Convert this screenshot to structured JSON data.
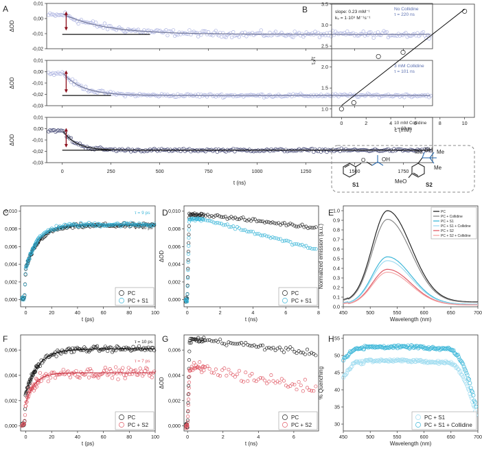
{
  "colors": {
    "lavender": "#a9b0e0",
    "lavender_dark": "#5a6fb0",
    "navy": "#3b3f6e",
    "black": "#222222",
    "gray": "#888888",
    "cyan": "#3bb6d8",
    "lightcyan": "#9fdcf0",
    "red": "#e05a66",
    "pink": "#f4a5a5",
    "darkred": "#8b0d1a",
    "fitgray": "#7a7f9e"
  },
  "chart_data": [
    {
      "id": "A1",
      "type": "scatter",
      "letter": "A",
      "xlim": [
        -80,
        1900
      ],
      "ylim": [
        -0.02,
        0.01
      ],
      "xticks": [
        0,
        250,
        500,
        750,
        1000,
        1250,
        1500,
        1750
      ],
      "xticklabels": [
        "",
        "",
        "",
        "",
        "",
        "",
        "",
        ""
      ],
      "yticks": [
        -0.02,
        -0.01,
        0,
        0.01
      ],
      "yticklabels": [
        "-0,02",
        "-0,01",
        "0,00",
        "0,01"
      ],
      "ylabel": "ΔOD",
      "xlabel": "",
      "annotation": [
        "No Collidine",
        "τ = 220 ns"
      ],
      "series": [
        {
          "name": "No Collidine",
          "tau_ns": 220,
          "plateau": -0.0105,
          "start": 0.0032,
          "noise": 0.0017,
          "color": "lavender",
          "fit_color": "fitgray"
        }
      ]
    },
    {
      "id": "A2",
      "type": "scatter",
      "xlim": [
        -80,
        1900
      ],
      "ylim": [
        -0.03,
        0.01
      ],
      "xticks": [
        0,
        250,
        500,
        750,
        1000,
        1250,
        1500,
        1750
      ],
      "xticklabels": [
        "",
        "",
        "",
        "",
        "",
        "",
        "",
        ""
      ],
      "yticks": [
        -0.03,
        -0.02,
        -0.01,
        0,
        0.01
      ],
      "yticklabels": [
        "-0,03",
        "-0,02",
        "-0,01",
        "0,00",
        "0,01"
      ],
      "ylabel": "ΔOD",
      "xlabel": "",
      "annotation": [
        "3 mM Collidine",
        "τ = 101 ns"
      ],
      "series": [
        {
          "name": "3 mM Collidine",
          "tau_ns": 101,
          "plateau": -0.021,
          "start": -0.0005,
          "noise": 0.0013,
          "color": "lavender",
          "fit_color": "fitgray"
        }
      ]
    },
    {
      "id": "A3",
      "type": "scatter",
      "xlim": [
        -80,
        1900
      ],
      "ylim": [
        -0.03,
        0.01
      ],
      "xticks": [
        0,
        250,
        500,
        750,
        1000,
        1250,
        1500,
        1750
      ],
      "xticklabels": [
        "0",
        "250",
        "500",
        "750",
        "1000",
        "1250",
        "1500",
        "1750"
      ],
      "yticks": [
        -0.03,
        -0.02,
        -0.01,
        0,
        0.01
      ],
      "yticklabels": [
        "-0,03",
        "-0,02",
        "-0,01",
        "0,00",
        "0,01"
      ],
      "ylabel": "ΔOD",
      "xlabel": "t (ns)",
      "annotation": [
        "10 mM Collidine",
        "τ = 68 ns"
      ],
      "series": [
        {
          "name": "10 mM Collidine",
          "tau_ns": 68,
          "plateau": -0.019,
          "start": -0.001,
          "noise": 0.0011,
          "color": "navy",
          "fit_color": "black"
        }
      ]
    },
    {
      "id": "B",
      "type": "scatter",
      "letter": "B",
      "xlim": [
        -0.8,
        10.8
      ],
      "ylim": [
        0.8,
        3.5
      ],
      "xticks": [
        0,
        2,
        4,
        6,
        8,
        10
      ],
      "xticklabels": [
        "0",
        "2",
        "4",
        "6",
        "8",
        "10"
      ],
      "yticks": [
        1.0,
        1.5,
        2.0,
        2.5,
        3.0,
        3.5
      ],
      "yticklabels": [
        "1.0",
        "1.5",
        "2.0",
        "2.5",
        "3.0",
        "3.5"
      ],
      "xlabel": "c (mM)",
      "ylabel": "τ₀/τ",
      "annotation": [
        "slope: 0.23 mM⁻¹",
        "k₉ = 1·10⁹ M⁻¹s⁻¹"
      ],
      "points": [
        {
          "x": 0,
          "y": 1.0
        },
        {
          "x": 1,
          "y": 1.15
        },
        {
          "x": 3,
          "y": 2.25
        },
        {
          "x": 5,
          "y": 2.35
        },
        {
          "x": 10,
          "y": 3.33
        }
      ],
      "fit": {
        "slope": 0.23,
        "intercept": 1.08,
        "x_range": [
          0,
          10
        ]
      }
    },
    {
      "id": "C",
      "type": "scatter",
      "letter": "C",
      "xlim": [
        -4,
        100
      ],
      "ylim": [
        -0.0008,
        0.0106
      ],
      "xticks": [
        0,
        20,
        40,
        60,
        80,
        100
      ],
      "xticklabels": [
        "0",
        "20",
        "40",
        "60",
        "80",
        "100"
      ],
      "yticks": [
        0,
        0.002,
        0.004,
        0.006,
        0.008,
        0.01
      ],
      "yticklabels": [
        "0,000",
        "0,002",
        "0,004",
        "0,006",
        "0,008",
        "0,010"
      ],
      "xlabel": "t (ps)",
      "ylabel": "ΔOD",
      "tau_labels": [
        {
          "text": "τ = 9 ps",
          "color": "cyan"
        },
        {
          "text": "τ = 10 ps",
          "color": "black"
        }
      ],
      "legend": [
        "PC",
        "PC + S1"
      ],
      "series": [
        {
          "name": "PC",
          "tau_ps": 10,
          "amp": 0.0084,
          "start": 0.0035,
          "noise": 0.00018,
          "color": "black"
        },
        {
          "name": "PC + S1",
          "tau_ps": 9,
          "amp": 0.0085,
          "start": 0.0035,
          "noise": 0.0002,
          "color": "cyan"
        }
      ]
    },
    {
      "id": "D",
      "type": "scatter",
      "letter": "D",
      "xlim": [
        -0.2,
        8
      ],
      "ylim": [
        -0.0008,
        0.0106
      ],
      "xticks": [
        0,
        2,
        4,
        6,
        8
      ],
      "xticklabels": [
        "0",
        "2",
        "4",
        "6",
        "8"
      ],
      "yticks": [
        0,
        0.002,
        0.004,
        0.006,
        0.008,
        0.01
      ],
      "yticklabels": [
        "0,000",
        "0,002",
        "0,004",
        "0,006",
        "0,008",
        "0,010"
      ],
      "xlabel": "t (ns)",
      "ylabel": "ΔOD",
      "legend": [
        "PC",
        "PC + S1"
      ],
      "series": [
        {
          "name": "PC",
          "peak": 0.0096,
          "end": 0.0081,
          "noise": 0.00015,
          "color": "black"
        },
        {
          "name": "PC + S1",
          "peak": 0.0091,
          "end": 0.0056,
          "noise": 0.00014,
          "color": "cyan"
        }
      ]
    },
    {
      "id": "E",
      "type": "line",
      "letter": "E",
      "xlim": [
        450,
        700
      ],
      "ylim": [
        0,
        1.05
      ],
      "xticks": [
        450,
        500,
        550,
        600,
        650,
        700
      ],
      "xticklabels": [
        "450",
        "500",
        "550",
        "600",
        "650",
        "700"
      ],
      "yticks": [
        0,
        0.1,
        0.2,
        0.3,
        0.4,
        0.5,
        0.6,
        0.7,
        0.8,
        0.9,
        1.0
      ],
      "yticklabels": [
        "0.0",
        "0.1",
        "0.2",
        "0.3",
        "0.4",
        "0.5",
        "0.6",
        "0.7",
        "0.8",
        "0.9",
        "1.0"
      ],
      "xlabel": "Wavelength (nm)",
      "ylabel": "Normalized emission (a.u.)",
      "legend": [
        "PC",
        "PC + Collidine",
        "PC + S1",
        "PC + S1 + Collidine",
        "PC + S2",
        "PC + S2 + Collidine"
      ],
      "series": [
        {
          "name": "PC",
          "peak": 1.0,
          "color": "black"
        },
        {
          "name": "PC + Collidine",
          "peak": 0.91,
          "color": "gray"
        },
        {
          "name": "PC + S1",
          "peak": 0.52,
          "color": "cyan"
        },
        {
          "name": "PC + S1 + Collidine",
          "peak": 0.48,
          "color": "lightcyan"
        },
        {
          "name": "PC + S2",
          "peak": 0.39,
          "color": "red"
        },
        {
          "name": "PC + S2 + Collidine",
          "peak": 0.36,
          "color": "pink"
        }
      ]
    },
    {
      "id": "F",
      "type": "scatter",
      "letter": "F",
      "xlim": [
        -4,
        100
      ],
      "ylim": [
        -0.0004,
        0.0072
      ],
      "xticks": [
        0,
        20,
        40,
        60,
        80,
        100
      ],
      "xticklabels": [
        "0",
        "20",
        "40",
        "60",
        "80",
        "100"
      ],
      "yticks": [
        0,
        0.002,
        0.004,
        0.006
      ],
      "yticklabels": [
        "0,000",
        "0,002",
        "0,004",
        "0,006"
      ],
      "xlabel": "t (ps)",
      "ylabel": "ΔOD",
      "tau_labels": [
        {
          "text": "τ = 10 ps",
          "color": "black"
        },
        {
          "text": "τ = 7 ps",
          "color": "red"
        }
      ],
      "legend": [
        "PC",
        "PC + S2"
      ],
      "series": [
        {
          "name": "PC",
          "tau_ps": 10,
          "amp": 0.0061,
          "start": 0.0026,
          "noise": 0.00018,
          "color": "black"
        },
        {
          "name": "PC + S2",
          "tau_ps": 7,
          "amp": 0.0042,
          "start": 0.0018,
          "noise": 0.00035,
          "color": "red"
        }
      ]
    },
    {
      "id": "G",
      "type": "scatter",
      "letter": "G",
      "xlim": [
        -0.2,
        7.4
      ],
      "ylim": [
        -0.0004,
        0.0072
      ],
      "xticks": [
        0,
        2,
        4,
        6
      ],
      "xticklabels": [
        "0",
        "2",
        "4",
        "6"
      ],
      "yticks": [
        0,
        0.002,
        0.004,
        0.006
      ],
      "yticklabels": [
        "0,000",
        "0,002",
        "0,004",
        "0,006"
      ],
      "xlabel": "t (ns)",
      "ylabel": "ΔOD",
      "legend": [
        "PC",
        "PC + S2"
      ],
      "series": [
        {
          "name": "PC",
          "peak": 0.0068,
          "end": 0.0057,
          "noise": 0.00018,
          "color": "black"
        },
        {
          "name": "PC + S2",
          "peak": 0.0045,
          "end": 0.0029,
          "noise": 0.00045,
          "color": "red"
        }
      ]
    },
    {
      "id": "H",
      "type": "scatter",
      "letter": "H",
      "xlim": [
        450,
        700
      ],
      "ylim": [
        28,
        56
      ],
      "xticks": [
        450,
        500,
        550,
        600,
        650,
        700
      ],
      "xticklabels": [
        "450",
        "500",
        "550",
        "600",
        "650",
        "700"
      ],
      "yticks": [
        30,
        35,
        40,
        45,
        50,
        55
      ],
      "yticklabels": [
        "30",
        "35",
        "40",
        "45",
        "50",
        "55"
      ],
      "xlabel": "Wavelength (nm)",
      "ylabel": "% Quenching",
      "legend": [
        "PC + S1",
        "PC + S1 + Collidine"
      ],
      "series": [
        {
          "name": "PC + S1",
          "plateau": 48,
          "color": "lightcyan"
        },
        {
          "name": "PC + S1 + Collidine",
          "plateau": 52,
          "color": "cyan"
        }
      ]
    }
  ],
  "structures": {
    "s1_label": "S1",
    "s2_label": "S2",
    "oh1": "OH",
    "oh2": "OH",
    "o_ether": "O",
    "me": "Me",
    "meo": "MeO"
  }
}
